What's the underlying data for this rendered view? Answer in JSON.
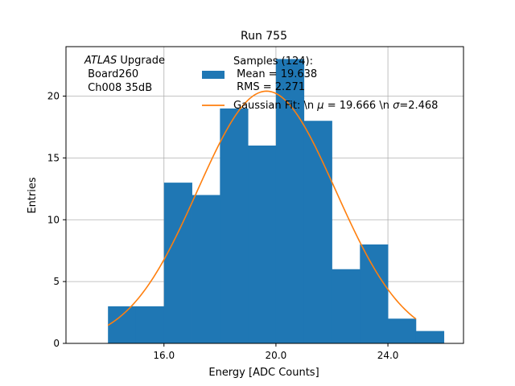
{
  "chart_data": {
    "type": "bar",
    "title": "Run 755",
    "xlabel": "Energy [ADC Counts]",
    "ylabel": "Entries",
    "xlim": [
      12.5,
      26.7
    ],
    "ylim": [
      0,
      24
    ],
    "grid": true,
    "x_ticks": [
      16.0,
      20.0,
      24.0
    ],
    "x_tick_labels": [
      "16.0",
      "20.0",
      "24.0"
    ],
    "y_ticks": [
      0,
      5,
      10,
      15,
      20
    ],
    "y_tick_labels": [
      "0",
      "5",
      "10",
      "15",
      "20"
    ],
    "histogram": {
      "name": "Samples (124):",
      "color": "#1f77b4",
      "bin_edges": [
        14.0,
        15.0,
        16.0,
        17.0,
        18.0,
        19.0,
        20.0,
        21.0,
        22.0,
        23.0,
        24.0,
        25.0,
        26.0
      ],
      "counts": [
        3,
        3,
        13,
        12,
        19,
        16,
        23,
        18,
        6,
        8,
        2,
        1
      ]
    },
    "fit": {
      "name": "Gaussian Fit",
      "color": "#ff7f0e",
      "mu": 19.666,
      "sigma": 2.468,
      "amplitude": 20.4,
      "x_range": [
        14.0,
        25.0
      ]
    },
    "annotation_lines": [
      "ATLAS Upgrade",
      " Board260",
      " Ch008 35dB"
    ],
    "legend": {
      "location": "top-right",
      "hist_lines": [
        "Samples (124):",
        " Mean = 19.638",
        " RMS = 2.271"
      ],
      "fit_label": "Gaussian Fit: \\n $\\mu$ = 19.666 \\n $\\sigma$=2.468"
    }
  }
}
